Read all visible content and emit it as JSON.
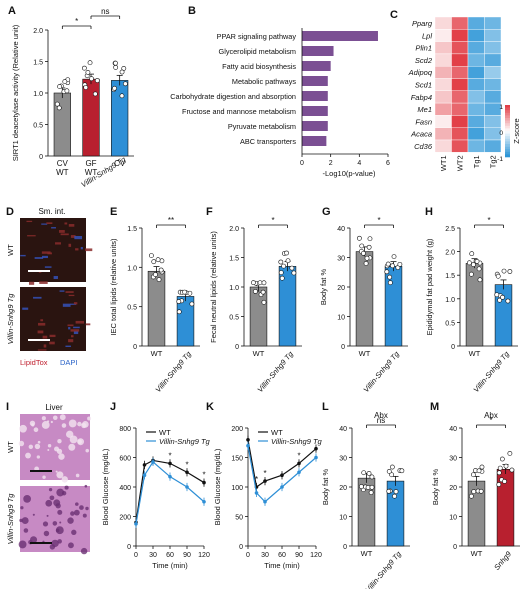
{
  "colors": {
    "gray": "#8c8c8c",
    "red": "#b8202f",
    "blue": "#2e8fd6",
    "purple": "#7b4f93",
    "black": "#111111",
    "micro_red": "#8a2b2b",
    "micro_dark": "#2a1410",
    "liver_pink": "#c78ac4"
  },
  "panels": {
    "A": {
      "label": "A",
      "ylabel": "SIRT1 deacetylase activity (Relative unit)",
      "ylim": [
        0,
        2
      ],
      "yticks": [
        "0",
        "0.5",
        "1.0",
        "1.5",
        "2.0"
      ],
      "groups": [
        {
          "name": "CV WT",
          "line1": "CV",
          "line2": "WT",
          "value": 1.0,
          "color": "gray"
        },
        {
          "name": "GF WT",
          "line1": "GF",
          "line2": "WT",
          "value": 1.22,
          "color": "red"
        },
        {
          "name": "CV Villin-Snhg9 Tg",
          "line1": "CV",
          "line2": "Villin-Snhg9 Tg",
          "value": 1.2,
          "color": "blue"
        }
      ],
      "sig": [
        {
          "from": 0,
          "to": 1,
          "text": "*"
        },
        {
          "from": 1,
          "to": 2,
          "text": "ns"
        }
      ]
    },
    "B": {
      "label": "B",
      "xlabel": "-Log10(p-value)",
      "xlim": [
        0,
        6
      ],
      "xticks": [
        "0",
        "2",
        "4",
        "6"
      ],
      "pathways": [
        {
          "name": "PPAR signaling pathway",
          "value": 5.3
        },
        {
          "name": "Glycerolipid metabolism",
          "value": 2.2
        },
        {
          "name": "Fatty acid biosynthesis",
          "value": 2.0
        },
        {
          "name": "Metabolic pathways",
          "value": 1.8
        },
        {
          "name": "Carbohydrate digestion and absorption",
          "value": 1.8
        },
        {
          "name": "Fructose and mannose metabolism",
          "value": 1.8
        },
        {
          "name": "Pyruvate metabolism",
          "value": 1.8
        },
        {
          "name": "ABC transporters",
          "value": 1.7
        }
      ]
    },
    "C": {
      "label": "C",
      "genes": [
        "Pparg",
        "Lpl",
        "Plin1",
        "Scd2",
        "Adipoq",
        "Scd1",
        "Fabp4",
        "Me1",
        "Fasn",
        "Acaca",
        "Cd36"
      ],
      "samples": [
        "WT1",
        "WT2",
        "Tg1",
        "Tg2"
      ],
      "zscores": [
        [
          0.2,
          0.8,
          -0.8,
          -0.7
        ],
        [
          0.1,
          1.0,
          -0.9,
          -0.6
        ],
        [
          0.3,
          0.9,
          -0.8,
          -0.6
        ],
        [
          0.2,
          1.0,
          -0.7,
          -0.8
        ],
        [
          0.4,
          0.8,
          -0.9,
          -0.5
        ],
        [
          0.2,
          1.0,
          -0.8,
          -0.7
        ],
        [
          0.3,
          0.8,
          -0.6,
          -0.8
        ],
        [
          0.5,
          0.8,
          -0.7,
          -0.8
        ],
        [
          0.1,
          1.0,
          -0.8,
          -0.6
        ],
        [
          0.4,
          0.9,
          -0.9,
          -0.6
        ],
        [
          0.2,
          0.9,
          -0.7,
          -0.8
        ]
      ],
      "colorbar_label": "Z-score",
      "colorbar_ticks": [
        "1",
        "0",
        "-1"
      ]
    },
    "D": {
      "label": "D",
      "title": "Sm. int.",
      "row1": "WT",
      "row2": "Villin-Snhg9 Tg",
      "legend1": "LipidTox",
      "legend2": "DAPI"
    },
    "E": {
      "label": "E",
      "ylabel": "IEC total lipids (relative units)",
      "ylim": [
        0,
        1.5
      ],
      "yticks": [
        "0",
        "0.5",
        "1.0",
        "1.5"
      ],
      "groups": [
        "WT",
        "Villin-Snhg9 Tg"
      ],
      "values": [
        0.95,
        0.63
      ],
      "sig": "**"
    },
    "F": {
      "label": "F",
      "ylabel": "Fecal neutral lipids (relative units)",
      "ylim": [
        0,
        2
      ],
      "yticks": [
        "0",
        "0.5",
        "1.0",
        "1.5",
        "2.0"
      ],
      "groups": [
        "WT",
        "Villin-Snhg9 Tg"
      ],
      "values": [
        1.0,
        1.35
      ],
      "sig": "*"
    },
    "G": {
      "label": "G",
      "ylabel": "Body fat %",
      "ylim": [
        0,
        40
      ],
      "yticks": [
        "0",
        "10",
        "20",
        "30",
        "40"
      ],
      "groups": [
        "WT",
        "Villin-Snhg9 Tg"
      ],
      "values": [
        32,
        27
      ],
      "sig": "*"
    },
    "H": {
      "label": "H",
      "ylabel": "Epididymal fat pad weight (g)",
      "ylim": [
        0,
        2.5
      ],
      "yticks": [
        "0",
        "0.5",
        "1.0",
        "1.5",
        "2.0",
        "2.5"
      ],
      "groups": [
        "WT",
        "Villin-Snhg9 Tg"
      ],
      "values": [
        1.75,
        1.3
      ],
      "sig": "*"
    },
    "I": {
      "label": "I",
      "title": "Liver",
      "row1": "WT",
      "row2": "Villin-Snhg9 Tg"
    },
    "J": {
      "label": "J",
      "ylabel": "Blood Glucose (mg/dL)",
      "xlabel": "Time (min)",
      "ylim": [
        0,
        800
      ],
      "yticks": [
        "0",
        "200",
        "400",
        "600",
        "800"
      ],
      "xticks": [
        "0",
        "30",
        "60",
        "90",
        "120"
      ],
      "x": [
        0,
        15,
        30,
        60,
        90,
        120
      ],
      "series": [
        {
          "name": "WT",
          "values": [
            160,
            550,
            580,
            560,
            500,
            430
          ],
          "color": "black"
        },
        {
          "name": "Villin-Snhg9 Tg",
          "values": [
            150,
            480,
            570,
            470,
            400,
            300
          ],
          "color": "blue"
        }
      ],
      "sig": [
        {
          "x": 60,
          "text": "*"
        },
        {
          "x": 90,
          "text": "*"
        },
        {
          "x": 120,
          "text": "*"
        }
      ]
    },
    "K": {
      "label": "K",
      "ylabel": "Blood Glucose (mg/dL)",
      "xlabel": "Time (min)",
      "ylim": [
        0,
        200
      ],
      "yticks": [
        "0",
        "50",
        "100",
        "150",
        "200"
      ],
      "xticks": [
        "0",
        "30",
        "60",
        "90",
        "120"
      ],
      "x": [
        0,
        15,
        30,
        60,
        90,
        120
      ],
      "series": [
        {
          "name": "WT",
          "values": [
            180,
            100,
            110,
            120,
            140,
            165
          ],
          "color": "black"
        },
        {
          "name": "Villin-Snhg9 Tg",
          "values": [
            170,
            90,
            75,
            100,
            125,
            150
          ],
          "color": "blue"
        }
      ],
      "sig": [
        {
          "x": 15,
          "text": "*"
        },
        {
          "x": 30,
          "text": "*"
        },
        {
          "x": 90,
          "text": "*"
        }
      ]
    },
    "L": {
      "label": "L",
      "title": "Abx",
      "ylabel": "Body fat %",
      "ylim": [
        0,
        40
      ],
      "yticks": [
        "0",
        "10",
        "20",
        "30",
        "40"
      ],
      "groups": [
        "WT",
        "Villin-Snhg9 Tg"
      ],
      "values": [
        23,
        22
      ],
      "sig": "ns"
    },
    "M": {
      "label": "M",
      "title": "Abx",
      "ylabel": "Body fat %",
      "ylim": [
        0,
        40
      ],
      "yticks": [
        "0",
        "10",
        "20",
        "30",
        "40"
      ],
      "groups": [
        "WT",
        "Snhg9"
      ],
      "values": [
        22,
        26
      ],
      "sig": "*"
    }
  }
}
